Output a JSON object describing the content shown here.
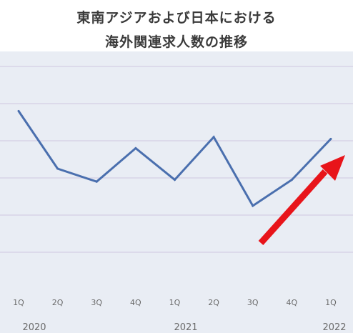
{
  "chart_data": {
    "type": "line",
    "title_lines": [
      "東南アジアおよび日本における",
      "海外関連求人数の推移"
    ],
    "categories": [
      "1Q",
      "2Q",
      "3Q",
      "4Q",
      "1Q",
      "2Q",
      "3Q",
      "4Q",
      "1Q"
    ],
    "year_labels": [
      {
        "label": "2020",
        "category_index": 0
      },
      {
        "label": "2021",
        "category_index": 4
      },
      {
        "label": "2022",
        "category_index": 8
      }
    ],
    "series": [
      {
        "values": [
          96,
          65,
          58,
          76,
          59,
          82,
          45,
          59,
          81
        ]
      }
    ],
    "ylim": [
      0,
      120
    ],
    "y_gridlines": [
      20,
      40,
      60,
      80,
      100,
      120
    ],
    "y_tick_labels_shown": false,
    "grid": true,
    "annotation": "upward trend arrow",
    "colors": {
      "plot_background": "#e9edf4",
      "line": "#4a6fae",
      "gridline": "#cfc6e0",
      "arrow": "#e8141a",
      "tick_text": "#6a6a6a"
    }
  }
}
